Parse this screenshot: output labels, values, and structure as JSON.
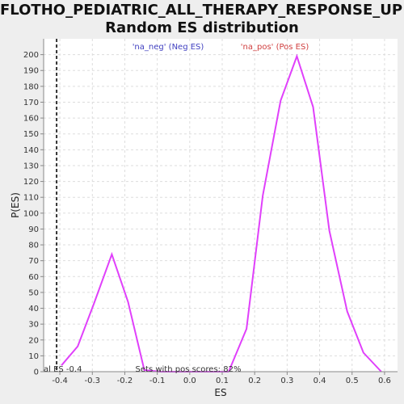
{
  "chart_data": {
    "type": "line",
    "title_lines": [
      "FLOTHO_PEDIATRIC_ALL_THERAPY_RESPONSE_UP:",
      "Random ES distribution"
    ],
    "xlabel": "ES",
    "ylabel": "P(ES)",
    "xlim": [
      -0.45,
      0.64
    ],
    "ylim": [
      0,
      210
    ],
    "x_ticks": [
      -0.4,
      -0.3,
      -0.2,
      -0.1,
      0.0,
      0.1,
      0.2,
      0.3,
      0.4,
      0.5,
      0.6
    ],
    "x_tick_labels": [
      "-0.4",
      "-0.3",
      "-0.2",
      "-0.1",
      "0.0",
      "0.1",
      "0.2",
      "0.3",
      "0.4",
      "0.5",
      "0.6"
    ],
    "y_ticks": [
      0,
      10,
      20,
      30,
      40,
      50,
      60,
      70,
      80,
      90,
      100,
      110,
      120,
      130,
      140,
      150,
      160,
      170,
      180,
      190,
      200
    ],
    "grid": true,
    "series": [
      {
        "name": "'na_neg' (Neg ES)",
        "color": "#e040fb",
        "x": [
          -0.395,
          -0.345,
          -0.295,
          -0.24,
          -0.19,
          -0.14,
          -0.09,
          -0.04,
          0.01,
          0.06,
          0.12
        ],
        "values": [
          4,
          16,
          43,
          74,
          44,
          1,
          0,
          0,
          0,
          0,
          0
        ]
      },
      {
        "name": "'na_pos' (Pos ES)",
        "color": "#e040fb",
        "x": [
          0.12,
          0.175,
          0.225,
          0.28,
          0.33,
          0.38,
          0.43,
          0.485,
          0.535,
          0.59
        ],
        "values": [
          0,
          27,
          111,
          171,
          199,
          167,
          89,
          38,
          12,
          0
        ]
      }
    ],
    "legend": [
      {
        "label": "'na_neg' (Neg ES)",
        "color": "#4040c0"
      },
      {
        "label": "'na_pos' (Pos ES)",
        "color": "#d04040"
      }
    ],
    "actual_es_line": {
      "x": -0.41,
      "label": "al ES -0.4"
    },
    "annotation": "Sets with pos scores: 82%"
  }
}
